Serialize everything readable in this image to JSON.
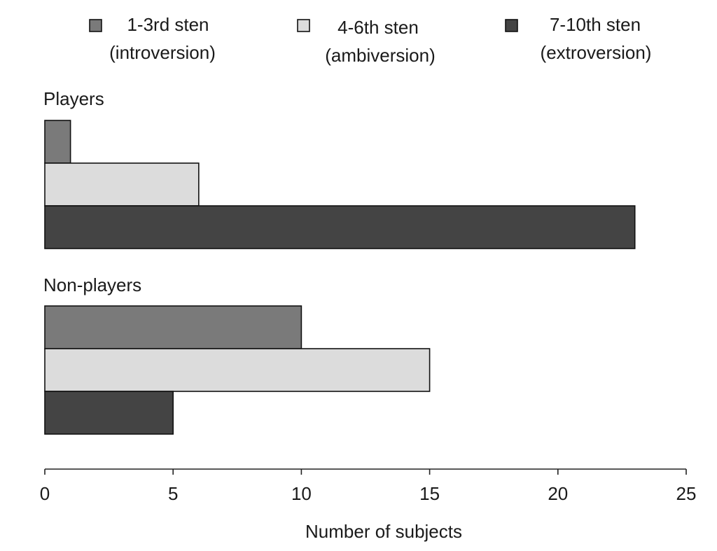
{
  "chart_data": {
    "type": "bar",
    "orientation": "horizontal",
    "title": "",
    "xlabel": "Number of subjects",
    "ylabel": "",
    "xlim": [
      0,
      25
    ],
    "xticks": [
      0,
      5,
      10,
      15,
      20,
      25
    ],
    "grid": false,
    "legend_position": "top",
    "categories": [
      "Players",
      "Non-players"
    ],
    "series": [
      {
        "name_line1": "1-3rd sten",
        "name_line2": "(introversion)",
        "color": "#7a7a7a",
        "values": [
          1,
          10
        ]
      },
      {
        "name_line1": "4-6th sten",
        "name_line2": "(ambiversion)",
        "color": "#dcdcdc",
        "values": [
          6,
          15
        ]
      },
      {
        "name_line1": "7-10th sten",
        "name_line2": "(extroversion)",
        "color": "#444444",
        "values": [
          23,
          5
        ]
      }
    ]
  }
}
